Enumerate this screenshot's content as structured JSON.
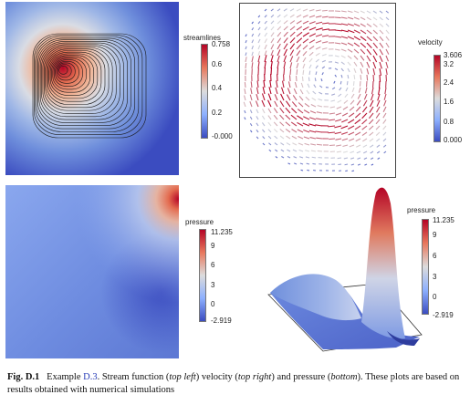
{
  "figure": {
    "label": "Fig. D.1",
    "caption_lead": "Example",
    "caption_ref": "D.3",
    "caption_part1": ". Stream function (",
    "caption_top_left": "top left",
    "caption_part2": ") velocity (",
    "caption_top_right": "top right",
    "caption_part3": ") and pressure (",
    "caption_bottom": "bottom",
    "caption_part4": "). These plots are based on results obtained with numerical simulations"
  },
  "panels": {
    "streamlines": {
      "legend_title": "streamlines",
      "ticks": [
        "0.758",
        "0.6",
        "0.4",
        "0.2",
        "-0.000"
      ],
      "color_low": "#3b4cc0",
      "color_high": "#b40426"
    },
    "velocity": {
      "legend_title": "velocity",
      "ticks": [
        "3.606",
        "3.2",
        "2.4",
        "1.6",
        "0.8",
        "0.000"
      ]
    },
    "pressure_2d": {
      "legend_title": "pressure",
      "ticks": [
        "11.235",
        "9",
        "6",
        "3",
        "0",
        "-2.919"
      ]
    },
    "pressure_3d": {
      "legend_title": "pressure",
      "ticks": [
        "11.235",
        "9",
        "6",
        "3",
        "0",
        "-2.919"
      ]
    }
  }
}
